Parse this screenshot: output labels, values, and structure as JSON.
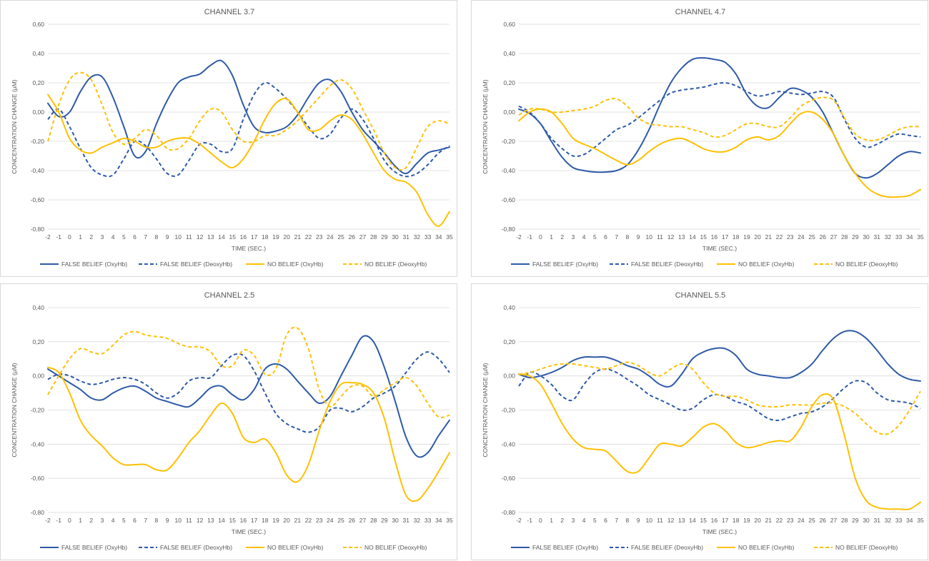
{
  "colors": {
    "false_belief": "#2e5aa8",
    "no_belief": "#ffc000",
    "axis_text": "#595959",
    "grid": "#d9d9d9"
  },
  "legend": [
    "FALSE BELIEF (OxyHb)",
    "FALSE BELIEF (DeoxyHb)",
    "NO BELIEF (OxyHb)",
    "NO BELIEF (DeoxyHb)"
  ],
  "chart_data": [
    {
      "type": "line",
      "title": "CHANNEL 3.7",
      "xlabel": "TIME (SEC.)",
      "ylabel": "CONCENTRATION CHANGE  (µM)",
      "ylim": [
        -0.8,
        0.6
      ],
      "yticks": [
        "0,60",
        "0,40",
        "0,20",
        "0,00",
        "-0,20",
        "-0,40",
        "-0,60",
        "-0,80"
      ],
      "x": [
        -2,
        -1,
        0,
        1,
        2,
        3,
        4,
        5,
        6,
        7,
        8,
        9,
        10,
        11,
        12,
        13,
        14,
        15,
        16,
        17,
        18,
        19,
        20,
        21,
        22,
        23,
        24,
        25,
        26,
        27,
        28,
        29,
        30,
        31,
        32,
        33,
        34,
        35
      ],
      "series": [
        {
          "name": "FALSE BELIEF (OxyHb)",
          "color": "false_belief",
          "dash": false,
          "values": [
            0.06,
            -0.03,
            0.0,
            0.14,
            0.24,
            0.24,
            0.1,
            -0.1,
            -0.3,
            -0.27,
            -0.08,
            0.08,
            0.2,
            0.24,
            0.26,
            0.32,
            0.35,
            0.25,
            0.05,
            -0.1,
            -0.14,
            -0.13,
            -0.1,
            -0.02,
            0.1,
            0.2,
            0.22,
            0.14,
            0.0,
            -0.12,
            -0.2,
            -0.28,
            -0.37,
            -0.42,
            -0.35,
            -0.28,
            -0.26,
            -0.24
          ]
        },
        {
          "name": "FALSE BELIEF (DeoxyHb)",
          "color": "false_belief",
          "dash": true,
          "values": [
            -0.05,
            0.02,
            -0.1,
            -0.25,
            -0.38,
            -0.43,
            -0.43,
            -0.32,
            -0.2,
            -0.23,
            -0.32,
            -0.42,
            -0.43,
            -0.33,
            -0.22,
            -0.22,
            -0.27,
            -0.25,
            -0.05,
            0.12,
            0.2,
            0.16,
            0.09,
            0.0,
            -0.1,
            -0.18,
            -0.15,
            -0.04,
            0.02,
            -0.05,
            -0.18,
            -0.33,
            -0.41,
            -0.44,
            -0.42,
            -0.36,
            -0.28,
            -0.23
          ]
        },
        {
          "name": "NO BELIEF (OxyHb)",
          "color": "no_belief",
          "dash": false,
          "values": [
            0.12,
            0.0,
            -0.18,
            -0.26,
            -0.28,
            -0.24,
            -0.21,
            -0.18,
            -0.2,
            -0.24,
            -0.24,
            -0.2,
            -0.18,
            -0.18,
            -0.22,
            -0.28,
            -0.34,
            -0.38,
            -0.32,
            -0.2,
            -0.05,
            0.06,
            0.09,
            0.0,
            -0.12,
            -0.12,
            -0.06,
            -0.02,
            -0.05,
            -0.15,
            -0.28,
            -0.4,
            -0.46,
            -0.48,
            -0.55,
            -0.7,
            -0.78,
            -0.68
          ]
        },
        {
          "name": "NO BELIEF (DeoxyHb)",
          "color": "no_belief",
          "dash": true,
          "values": [
            -0.2,
            0.05,
            0.22,
            0.27,
            0.22,
            0.05,
            -0.14,
            -0.22,
            -0.18,
            -0.12,
            -0.16,
            -0.25,
            -0.25,
            -0.18,
            -0.06,
            0.02,
            0.0,
            -0.12,
            -0.2,
            -0.2,
            -0.16,
            -0.16,
            -0.12,
            -0.06,
            0.02,
            0.1,
            0.18,
            0.22,
            0.16,
            0.02,
            -0.12,
            -0.28,
            -0.38,
            -0.38,
            -0.24,
            -0.1,
            -0.06,
            -0.08
          ]
        }
      ]
    },
    {
      "type": "line",
      "title": "CHANNEL 4.7",
      "xlabel": "TIME (SEC.)",
      "ylabel": "CONCENTRATION CHANGE  (µM)",
      "ylim": [
        -0.8,
        0.6
      ],
      "yticks": [
        "0,60",
        "0,40",
        "0,20",
        "0,00",
        "-0,20",
        "-0,40",
        "-0,60",
        "-0,80"
      ],
      "x": [
        -2,
        -1,
        0,
        1,
        2,
        3,
        4,
        5,
        6,
        7,
        8,
        9,
        10,
        11,
        12,
        13,
        14,
        15,
        16,
        17,
        18,
        19,
        20,
        21,
        22,
        23,
        24,
        25,
        26,
        27,
        28,
        29,
        30,
        31,
        32,
        33,
        34,
        35
      ],
      "series": [
        {
          "name": "FALSE BELIEF (OxyHb)",
          "color": "false_belief",
          "dash": false,
          "values": [
            0.02,
            -0.01,
            -0.08,
            -0.2,
            -0.31,
            -0.38,
            -0.4,
            -0.41,
            -0.41,
            -0.4,
            -0.36,
            -0.26,
            -0.12,
            0.05,
            0.2,
            0.3,
            0.36,
            0.37,
            0.36,
            0.34,
            0.26,
            0.12,
            0.04,
            0.03,
            0.1,
            0.16,
            0.15,
            0.1,
            0.0,
            -0.15,
            -0.3,
            -0.42,
            -0.45,
            -0.42,
            -0.36,
            -0.3,
            -0.27,
            -0.28
          ]
        },
        {
          "name": "FALSE BELIEF (DeoxyHb)",
          "color": "false_belief",
          "dash": true,
          "values": [
            0.04,
            0.0,
            -0.08,
            -0.18,
            -0.25,
            -0.3,
            -0.29,
            -0.24,
            -0.18,
            -0.12,
            -0.09,
            -0.04,
            0.02,
            0.08,
            0.13,
            0.15,
            0.16,
            0.17,
            0.19,
            0.2,
            0.18,
            0.14,
            0.11,
            0.12,
            0.14,
            0.13,
            0.12,
            0.13,
            0.14,
            0.1,
            -0.05,
            -0.18,
            -0.24,
            -0.22,
            -0.18,
            -0.15,
            -0.16,
            -0.17
          ]
        },
        {
          "name": "NO BELIEF (OxyHb)",
          "color": "no_belief",
          "dash": false,
          "values": [
            -0.06,
            0.0,
            0.02,
            0.0,
            -0.08,
            -0.18,
            -0.22,
            -0.25,
            -0.29,
            -0.33,
            -0.36,
            -0.33,
            -0.27,
            -0.22,
            -0.19,
            -0.18,
            -0.21,
            -0.25,
            -0.27,
            -0.27,
            -0.24,
            -0.19,
            -0.17,
            -0.19,
            -0.16,
            -0.08,
            -0.01,
            0.0,
            -0.05,
            -0.15,
            -0.3,
            -0.42,
            -0.51,
            -0.56,
            -0.58,
            -0.58,
            -0.57,
            -0.53
          ]
        },
        {
          "name": "NO BELIEF (DeoxyHb)",
          "color": "no_belief",
          "dash": true,
          "values": [
            -0.02,
            0.02,
            0.02,
            0.0,
            0.0,
            0.01,
            0.02,
            0.04,
            0.08,
            0.09,
            0.04,
            -0.04,
            -0.08,
            -0.09,
            -0.1,
            -0.1,
            -0.12,
            -0.14,
            -0.17,
            -0.16,
            -0.12,
            -0.08,
            -0.08,
            -0.1,
            -0.1,
            -0.04,
            0.04,
            0.08,
            0.1,
            0.08,
            -0.04,
            -0.15,
            -0.19,
            -0.19,
            -0.16,
            -0.12,
            -0.1,
            -0.1
          ]
        }
      ]
    },
    {
      "type": "line",
      "title": "CHANNEL 2.5",
      "xlabel": "TIME (SEC.)",
      "ylabel": "CONCENTRATION CHANGE  (µM)",
      "ylim": [
        -0.8,
        0.4
      ],
      "yticks": [
        "0,40",
        "0,20",
        "0,00",
        "-0,20",
        "-0,40",
        "-0,60",
        "-0,80"
      ],
      "x": [
        -2,
        -1,
        0,
        1,
        2,
        3,
        4,
        5,
        6,
        7,
        8,
        9,
        10,
        11,
        12,
        13,
        14,
        15,
        16,
        17,
        18,
        19,
        20,
        21,
        22,
        23,
        24,
        25,
        26,
        27,
        28,
        29,
        30,
        31,
        32,
        33,
        34,
        35
      ],
      "series": [
        {
          "name": "FALSE BELIEF (OxyHb)",
          "color": "false_belief",
          "dash": false,
          "values": [
            0.04,
            0.0,
            -0.04,
            -0.08,
            -0.13,
            -0.14,
            -0.1,
            -0.07,
            -0.06,
            -0.09,
            -0.13,
            -0.15,
            -0.17,
            -0.18,
            -0.13,
            -0.07,
            -0.06,
            -0.11,
            -0.14,
            -0.08,
            0.04,
            0.07,
            0.04,
            -0.03,
            -0.1,
            -0.16,
            -0.12,
            0.0,
            0.12,
            0.23,
            0.2,
            0.05,
            -0.15,
            -0.36,
            -0.47,
            -0.45,
            -0.35,
            -0.26
          ]
        },
        {
          "name": "FALSE BELIEF (DeoxyHb)",
          "color": "false_belief",
          "dash": true,
          "values": [
            -0.02,
            0.01,
            0.0,
            -0.03,
            -0.05,
            -0.04,
            -0.02,
            -0.01,
            -0.02,
            -0.05,
            -0.1,
            -0.13,
            -0.1,
            -0.03,
            -0.01,
            -0.01,
            0.06,
            0.12,
            0.12,
            0.03,
            -0.1,
            -0.22,
            -0.28,
            -0.31,
            -0.33,
            -0.3,
            -0.2,
            -0.19,
            -0.21,
            -0.18,
            -0.13,
            -0.1,
            -0.06,
            0.02,
            0.1,
            0.14,
            0.1,
            0.02
          ]
        },
        {
          "name": "NO BELIEF (OxyHb)",
          "color": "no_belief",
          "dash": false,
          "values": [
            0.05,
            0.02,
            -0.1,
            -0.26,
            -0.35,
            -0.41,
            -0.48,
            -0.52,
            -0.52,
            -0.52,
            -0.55,
            -0.55,
            -0.48,
            -0.39,
            -0.32,
            -0.23,
            -0.16,
            -0.22,
            -0.36,
            -0.39,
            -0.37,
            -0.45,
            -0.58,
            -0.62,
            -0.52,
            -0.32,
            -0.15,
            -0.05,
            -0.04,
            -0.05,
            -0.1,
            -0.25,
            -0.5,
            -0.7,
            -0.73,
            -0.66,
            -0.56,
            -0.45
          ]
        },
        {
          "name": "NO BELIEF (DeoxyHb)",
          "color": "no_belief",
          "dash": true,
          "values": [
            -0.11,
            0.0,
            0.1,
            0.16,
            0.14,
            0.13,
            0.18,
            0.24,
            0.26,
            0.24,
            0.23,
            0.22,
            0.19,
            0.17,
            0.17,
            0.14,
            0.06,
            0.06,
            0.15,
            0.12,
            0.01,
            0.04,
            0.24,
            0.28,
            0.16,
            -0.08,
            -0.18,
            -0.12,
            -0.06,
            -0.06,
            -0.12,
            -0.08,
            -0.04,
            -0.01,
            -0.06,
            -0.16,
            -0.24,
            -0.23
          ]
        }
      ]
    },
    {
      "type": "line",
      "title": "CHANNEL 5.5",
      "xlabel": "TIME (SEC.)",
      "ylabel": "CONCENTRATION CHANGE  (µM)",
      "ylim": [
        -0.8,
        0.4
      ],
      "yticks": [
        "0,40",
        "0,20",
        "0,00",
        "-0,20",
        "-0,40",
        "-0,60",
        "-0,80"
      ],
      "x": [
        -2,
        -1,
        0,
        1,
        2,
        3,
        4,
        5,
        6,
        7,
        8,
        9,
        10,
        11,
        12,
        13,
        14,
        15,
        16,
        17,
        18,
        19,
        20,
        21,
        22,
        23,
        24,
        25,
        26,
        27,
        28,
        29,
        30,
        31,
        32,
        33,
        34,
        35
      ],
      "series": [
        {
          "name": "FALSE BELIEF (OxyHb)",
          "color": "false_belief",
          "dash": false,
          "values": [
            0.01,
            -0.01,
            0.0,
            0.02,
            0.05,
            0.09,
            0.11,
            0.11,
            0.11,
            0.09,
            0.06,
            0.04,
            0.0,
            -0.05,
            -0.06,
            0.01,
            0.1,
            0.14,
            0.16,
            0.16,
            0.12,
            0.04,
            0.01,
            0.0,
            -0.01,
            -0.01,
            0.02,
            0.07,
            0.15,
            0.22,
            0.26,
            0.26,
            0.22,
            0.15,
            0.07,
            0.01,
            -0.02,
            -0.03
          ]
        },
        {
          "name": "FALSE BELIEF (DeoxyHb)",
          "color": "false_belief",
          "dash": true,
          "values": [
            -0.06,
            0.02,
            0.0,
            -0.05,
            -0.12,
            -0.14,
            -0.05,
            0.02,
            0.04,
            0.02,
            -0.02,
            -0.06,
            -0.11,
            -0.14,
            -0.17,
            -0.2,
            -0.19,
            -0.14,
            -0.11,
            -0.12,
            -0.15,
            -0.17,
            -0.21,
            -0.25,
            -0.26,
            -0.24,
            -0.22,
            -0.21,
            -0.18,
            -0.13,
            -0.07,
            -0.03,
            -0.04,
            -0.1,
            -0.14,
            -0.15,
            -0.16,
            -0.19
          ]
        },
        {
          "name": "NO BELIEF (OxyHb)",
          "color": "no_belief",
          "dash": false,
          "values": [
            0.01,
            0.0,
            -0.05,
            -0.16,
            -0.28,
            -0.37,
            -0.42,
            -0.43,
            -0.44,
            -0.5,
            -0.56,
            -0.56,
            -0.48,
            -0.4,
            -0.4,
            -0.41,
            -0.36,
            -0.3,
            -0.28,
            -0.32,
            -0.39,
            -0.42,
            -0.41,
            -0.39,
            -0.38,
            -0.38,
            -0.3,
            -0.18,
            -0.11,
            -0.14,
            -0.35,
            -0.6,
            -0.73,
            -0.77,
            -0.78,
            -0.78,
            -0.78,
            -0.74
          ]
        },
        {
          "name": "NO BELIEF (DeoxyHb)",
          "color": "no_belief",
          "dash": true,
          "values": [
            0.01,
            0.02,
            0.04,
            0.06,
            0.07,
            0.07,
            0.06,
            0.05,
            0.04,
            0.06,
            0.08,
            0.06,
            0.02,
            0.0,
            0.04,
            0.07,
            0.04,
            -0.04,
            -0.1,
            -0.12,
            -0.12,
            -0.14,
            -0.17,
            -0.18,
            -0.18,
            -0.17,
            -0.17,
            -0.17,
            -0.16,
            -0.16,
            -0.18,
            -0.22,
            -0.28,
            -0.33,
            -0.34,
            -0.29,
            -0.2,
            -0.09
          ]
        }
      ]
    }
  ]
}
